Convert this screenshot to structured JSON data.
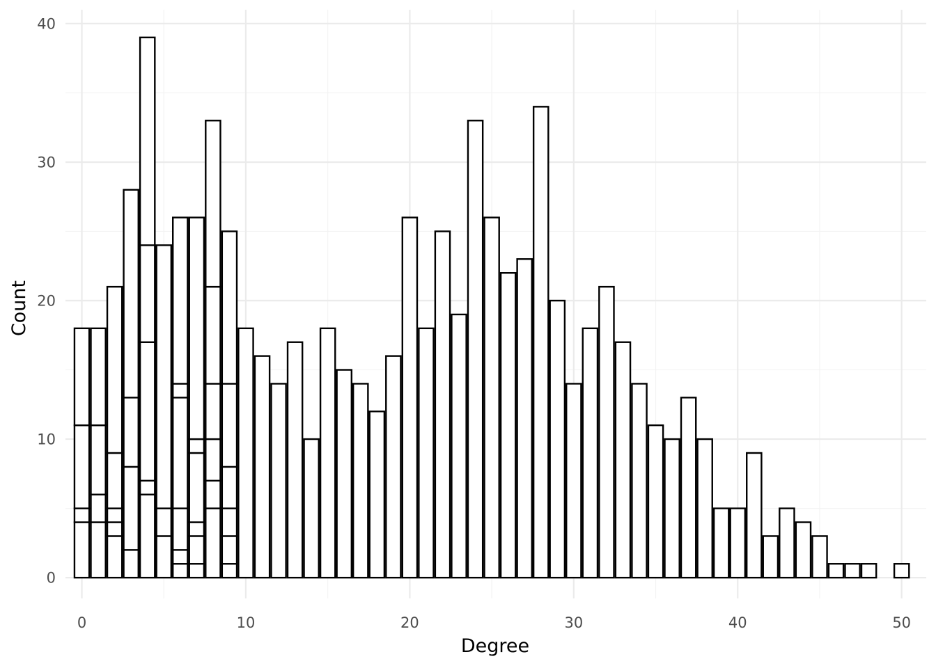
{
  "chart_data": {
    "type": "bar",
    "subtype": "stacked-histogram",
    "xlabel": "Degree",
    "ylabel": "Count",
    "xlim": [
      -1,
      51.5
    ],
    "ylim": [
      -1.5,
      41
    ],
    "x_ticks": [
      0,
      10,
      20,
      30,
      40,
      50
    ],
    "y_ticks": [
      0,
      10,
      20,
      30,
      40
    ],
    "grid": true,
    "bar_fill": "#ffffff",
    "bar_outline": "#000000",
    "bars": [
      {
        "x": 0,
        "segments": [
          4,
          1,
          6,
          7
        ]
      },
      {
        "x": 1,
        "segments": [
          4,
          2,
          5,
          7
        ]
      },
      {
        "x": 2,
        "segments": [
          3,
          1,
          1,
          4,
          12
        ]
      },
      {
        "x": 3,
        "segments": [
          2,
          6,
          5,
          15
        ]
      },
      {
        "x": 4,
        "segments": [
          6,
          1,
          10,
          7,
          15
        ]
      },
      {
        "x": 5,
        "segments": [
          3,
          2,
          19
        ]
      },
      {
        "x": 6,
        "segments": [
          1,
          1,
          3,
          8,
          1,
          12
        ]
      },
      {
        "x": 7,
        "segments": [
          1,
          2,
          1,
          5,
          1,
          16
        ]
      },
      {
        "x": 8,
        "segments": [
          5,
          2,
          3,
          4,
          7,
          12
        ]
      },
      {
        "x": 9,
        "segments": [
          1,
          2,
          2,
          3,
          6,
          11
        ]
      },
      {
        "x": 10,
        "segments": [
          18
        ]
      },
      {
        "x": 11,
        "segments": [
          16
        ]
      },
      {
        "x": 12,
        "segments": [
          14
        ]
      },
      {
        "x": 13,
        "segments": [
          17
        ]
      },
      {
        "x": 14,
        "segments": [
          10
        ]
      },
      {
        "x": 15,
        "segments": [
          18
        ]
      },
      {
        "x": 16,
        "segments": [
          15
        ]
      },
      {
        "x": 17,
        "segments": [
          14
        ]
      },
      {
        "x": 18,
        "segments": [
          12
        ]
      },
      {
        "x": 19,
        "segments": [
          16
        ]
      },
      {
        "x": 20,
        "segments": [
          26
        ]
      },
      {
        "x": 21,
        "segments": [
          18
        ]
      },
      {
        "x": 22,
        "segments": [
          25
        ]
      },
      {
        "x": 23,
        "segments": [
          19
        ]
      },
      {
        "x": 24,
        "segments": [
          33
        ]
      },
      {
        "x": 25,
        "segments": [
          26
        ]
      },
      {
        "x": 26,
        "segments": [
          22
        ]
      },
      {
        "x": 27,
        "segments": [
          23
        ]
      },
      {
        "x": 28,
        "segments": [
          34
        ]
      },
      {
        "x": 29,
        "segments": [
          20
        ]
      },
      {
        "x": 30,
        "segments": [
          14
        ]
      },
      {
        "x": 31,
        "segments": [
          18
        ]
      },
      {
        "x": 32,
        "segments": [
          21
        ]
      },
      {
        "x": 33,
        "segments": [
          17
        ]
      },
      {
        "x": 34,
        "segments": [
          14
        ]
      },
      {
        "x": 35,
        "segments": [
          11
        ]
      },
      {
        "x": 36,
        "segments": [
          10
        ]
      },
      {
        "x": 37,
        "segments": [
          13
        ]
      },
      {
        "x": 38,
        "segments": [
          10
        ]
      },
      {
        "x": 39,
        "segments": [
          5
        ]
      },
      {
        "x": 40,
        "segments": [
          5
        ]
      },
      {
        "x": 41,
        "segments": [
          9
        ]
      },
      {
        "x": 42,
        "segments": [
          3
        ]
      },
      {
        "x": 43,
        "segments": [
          5
        ]
      },
      {
        "x": 44,
        "segments": [
          4
        ]
      },
      {
        "x": 45,
        "segments": [
          3
        ]
      },
      {
        "x": 46,
        "segments": [
          1
        ]
      },
      {
        "x": 47,
        "segments": [
          1
        ]
      },
      {
        "x": 48,
        "segments": [
          1
        ]
      },
      {
        "x": 50,
        "segments": [
          1
        ]
      }
    ]
  }
}
